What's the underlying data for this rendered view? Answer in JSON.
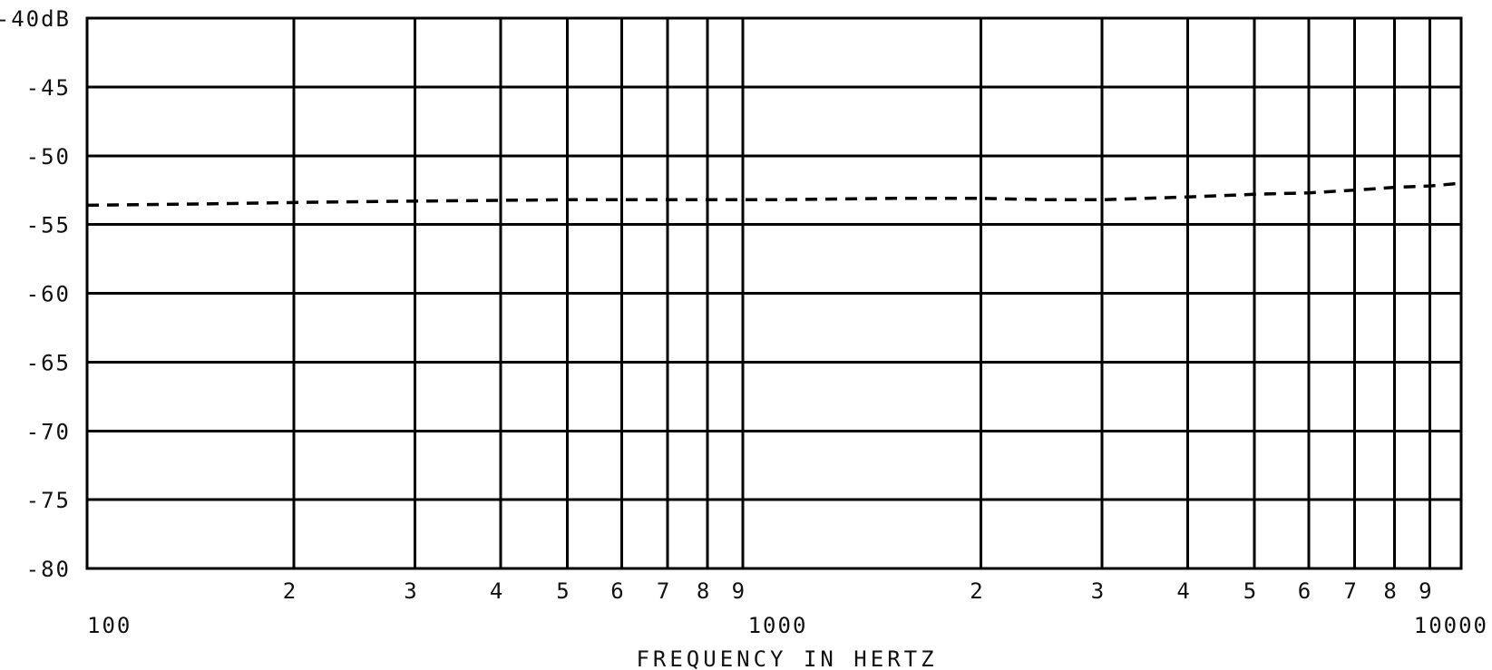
{
  "chart_data": {
    "type": "line",
    "title": "",
    "xlabel": "FREQUENCY IN HERTZ",
    "ylabel": "",
    "x_scale": "log",
    "xlim": [
      100,
      10000
    ],
    "ylim": [
      -80,
      -40
    ],
    "grid": true,
    "legend": "none",
    "y_tick_labels": [
      "-40dB",
      "-45",
      "-50",
      "-55",
      "-60",
      "-65",
      "-70",
      "-75",
      "-80"
    ],
    "y_ticks": [
      -40,
      -45,
      -50,
      -55,
      -60,
      -65,
      -70,
      -75,
      -80
    ],
    "x_major_ticks": [
      {
        "value": 100,
        "label": "100"
      },
      {
        "value": 1000,
        "label": "1000"
      },
      {
        "value": 10000,
        "label": "10000"
      }
    ],
    "x_minor_ticks": [
      {
        "value": 200,
        "label": "2"
      },
      {
        "value": 300,
        "label": "3"
      },
      {
        "value": 400,
        "label": "4"
      },
      {
        "value": 500,
        "label": "5"
      },
      {
        "value": 600,
        "label": "6"
      },
      {
        "value": 700,
        "label": "7"
      },
      {
        "value": 800,
        "label": "8"
      },
      {
        "value": 900,
        "label": "9"
      },
      {
        "value": 2000,
        "label": "2"
      },
      {
        "value": 3000,
        "label": "3"
      },
      {
        "value": 4000,
        "label": "4"
      },
      {
        "value": 5000,
        "label": "5"
      },
      {
        "value": 6000,
        "label": "6"
      },
      {
        "value": 7000,
        "label": "7"
      },
      {
        "value": 8000,
        "label": "8"
      },
      {
        "value": 9000,
        "label": "9"
      }
    ],
    "series": [
      {
        "style": "dashed",
        "color": "#000000",
        "x": [
          100,
          150,
          200,
          300,
          500,
          700,
          1000,
          1500,
          2000,
          2500,
          3000,
          4000,
          5000,
          6000,
          7000,
          8000,
          9000,
          10000
        ],
        "y": [
          -53.6,
          -53.5,
          -53.4,
          -53.3,
          -53.2,
          -53.2,
          -53.2,
          -53.1,
          -53.1,
          -53.2,
          -53.2,
          -53.0,
          -52.8,
          -52.7,
          -52.5,
          -52.3,
          -52.2,
          -52.0
        ]
      }
    ]
  }
}
